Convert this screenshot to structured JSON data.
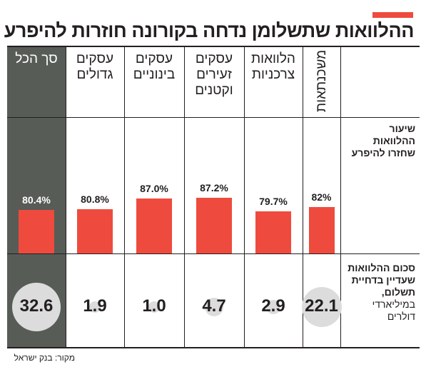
{
  "title": "ההלוואות שתשלומן נדחה בקורונה חוזרות להיפרע",
  "source": "מקור: בנק ישראל",
  "colors": {
    "bar": "#ee4b3e",
    "total_column": "#575c57",
    "circle": "#dcdcdc",
    "accent": "#ee4b3e"
  },
  "row_labels": {
    "return_rate": "שיעור ההלוואות שחזרו להיפרע",
    "amount_bold": "סכום ההלוואות שעדיין בדחיית תשלום,",
    "amount_unit": "במיליארדי דולרים"
  },
  "chart_data": {
    "type": "bar",
    "title": "ההלוואות שתשלומן נדחה בקורונה חוזרות להיפרע",
    "categories": [
      "משכנתאות",
      "הלוואות צרכניות",
      "עסקים זעירים וקטנים",
      "עסקים בינוניים",
      "עסקים גדולים",
      "סך הכל"
    ],
    "series": [
      {
        "name": "שיעור ההלוואות שחזרו להיפרע",
        "values": [
          82,
          79.7,
          87.2,
          87.0,
          80.8,
          80.4
        ],
        "labels": [
          "82%",
          "79.7%",
          "87.2%",
          "87.0%",
          "80.8%",
          "80.4%"
        ]
      },
      {
        "name": "סכום ההלוואות שעדיין בדחיית תשלום, במיליארדי דולרים",
        "values": [
          22.1,
          2.9,
          4.7,
          1.0,
          1.9,
          32.6
        ],
        "labels": [
          "22.1",
          "2.9",
          "4.7",
          "1.0",
          "1.9",
          "32.6"
        ]
      }
    ],
    "ylim": [
      0,
      100
    ]
  }
}
